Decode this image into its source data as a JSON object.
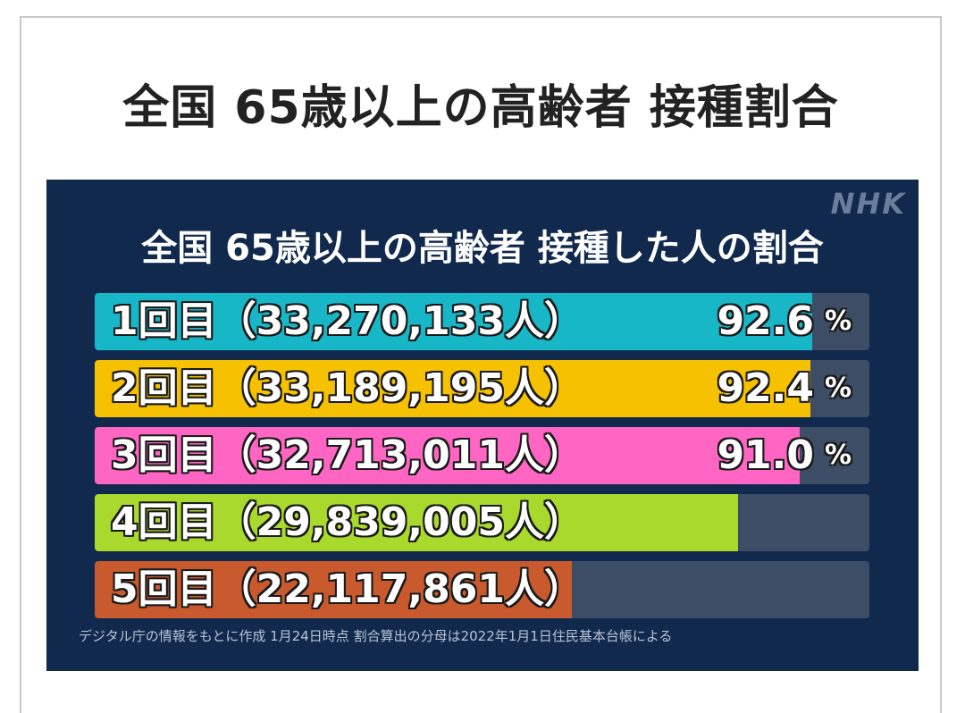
{
  "page": {
    "title": "全国 65歳以上の高齢者 接種割合"
  },
  "panel": {
    "logo": "NHK",
    "footnote": "デジタル庁の情報をもとに作成 1月24日時点 割合算出の分母は2022年1月1日住民基本台帳による"
  },
  "chart_data": {
    "type": "bar",
    "orientation": "horizontal",
    "title": "全国 65歳以上の高齢者 接種した人の割合",
    "xlim": [
      0,
      100
    ],
    "categories": [
      "1回目（33,270,133人）",
      "2回目（33,189,195人）",
      "3回目（32,713,011人）",
      "4回目（29,839,005人）",
      "5回目（22,117,861人）"
    ],
    "values": [
      92.6,
      92.4,
      91.0,
      83.1,
      61.6
    ],
    "value_labels": [
      "92.6",
      "92.4",
      "91.0",
      "",
      ""
    ],
    "unit": "%",
    "colors": [
      "#18b7c7",
      "#f6c100",
      "#ff66c4",
      "#a8d92c",
      "#c95a2e"
    ],
    "track_color": "#3d4d66"
  }
}
